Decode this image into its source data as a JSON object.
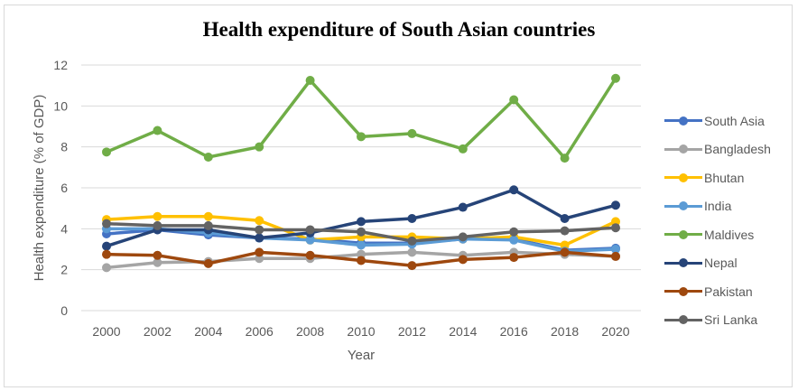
{
  "chart_data": {
    "type": "line",
    "title": "Health expenditure of South Asian countries",
    "xlabel": "Year",
    "ylabel": "Health expenditure (% of GDP)",
    "x": [
      "2000",
      "2002",
      "2004",
      "2006",
      "2008",
      "2010",
      "2012",
      "2014",
      "2016",
      "2018",
      "2020"
    ],
    "ylim": [
      0,
      12
    ],
    "yticks": [
      "0",
      "2",
      "4",
      "6",
      "8",
      "10",
      "12"
    ],
    "grid": true,
    "legend_position": "right",
    "series": [
      {
        "name": "South Asia",
        "color": "#4472C4",
        "values": [
          3.75,
          3.95,
          3.7,
          3.55,
          3.5,
          3.3,
          3.3,
          3.5,
          3.5,
          2.95,
          3.05
        ]
      },
      {
        "name": "Bangladesh",
        "color": "#A5A5A5",
        "values": [
          2.1,
          2.35,
          2.4,
          2.55,
          2.55,
          2.75,
          2.85,
          2.7,
          2.85,
          2.75,
          2.65
        ]
      },
      {
        "name": "Bhutan",
        "color": "#FFC000",
        "values": [
          4.45,
          4.6,
          4.6,
          4.4,
          3.45,
          3.6,
          3.6,
          3.5,
          3.6,
          3.2,
          4.35
        ]
      },
      {
        "name": "India",
        "color": "#5B9BD5",
        "values": [
          4.0,
          4.0,
          3.8,
          3.55,
          3.45,
          3.2,
          3.25,
          3.5,
          3.45,
          2.9,
          3.0
        ]
      },
      {
        "name": "Maldives",
        "color": "#70AD47",
        "values": [
          7.75,
          8.8,
          7.5,
          8.0,
          11.25,
          8.5,
          8.65,
          7.9,
          10.3,
          7.45,
          11.35
        ]
      },
      {
        "name": "Nepal",
        "color": "#264478",
        "values": [
          3.15,
          3.95,
          3.95,
          3.55,
          3.8,
          4.35,
          4.5,
          5.05,
          5.9,
          4.5,
          5.15
        ]
      },
      {
        "name": "Pakistan",
        "color": "#9E480E",
        "values": [
          2.75,
          2.7,
          2.3,
          2.85,
          2.7,
          2.45,
          2.2,
          2.5,
          2.6,
          2.85,
          2.65
        ]
      },
      {
        "name": "Sri Lanka",
        "color": "#636363",
        "values": [
          4.25,
          4.15,
          4.15,
          3.95,
          3.95,
          3.85,
          3.4,
          3.6,
          3.85,
          3.9,
          4.05
        ]
      }
    ]
  }
}
